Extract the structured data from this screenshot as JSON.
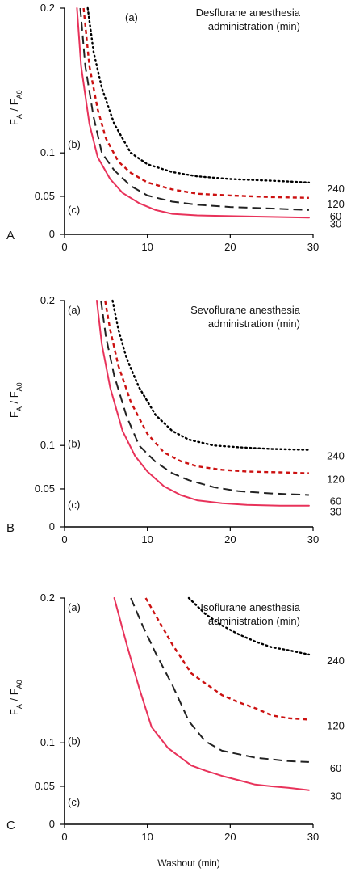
{
  "chart_data": [
    {
      "type": "line",
      "panel": "A",
      "title_lines": [
        "Desflurane anesthesia",
        "administration (min)"
      ],
      "xlabel": "",
      "ylabel": "F_A / F_A0",
      "xlim": [
        0,
        30
      ],
      "ylim": [
        0,
        0.2
      ],
      "xticks": [
        0,
        10,
        20,
        30
      ],
      "yticks": [
        0,
        0.05,
        0.1,
        0.2
      ],
      "region_labels": [
        "(a)",
        "(b)",
        "(c)"
      ],
      "series": [
        {
          "label": "240",
          "color": "#000000",
          "style": "dotted",
          "x": [
            2.8,
            3.5,
            4.5,
            6,
            8,
            10,
            13,
            16,
            20,
            25,
            29.5
          ],
          "y": [
            0.2,
            0.17,
            0.145,
            0.12,
            0.1,
            0.087,
            0.078,
            0.073,
            0.07,
            0.068,
            0.066
          ]
        },
        {
          "label": "120",
          "color": "#cc1111",
          "style": "short-dash",
          "x": [
            2.3,
            3,
            4,
            5,
            6.5,
            8,
            10,
            13,
            16,
            20,
            25,
            29.5
          ],
          "y": [
            0.2,
            0.16,
            0.13,
            0.11,
            0.09,
            0.077,
            0.066,
            0.058,
            0.053,
            0.051,
            0.049,
            0.048
          ]
        },
        {
          "label": "60",
          "color": "#222222",
          "style": "long-dash",
          "x": [
            1.9,
            2.5,
            3.5,
            4.5,
            6,
            8,
            10,
            13,
            16,
            20,
            25,
            29.5
          ],
          "y": [
            0.2,
            0.16,
            0.125,
            0.1,
            0.08,
            0.062,
            0.051,
            0.043,
            0.039,
            0.036,
            0.034,
            0.032
          ]
        },
        {
          "label": "30",
          "color": "#e8325a",
          "style": "solid",
          "x": [
            1.5,
            2,
            3,
            4,
            5.5,
            7,
            9,
            11,
            13,
            16,
            20,
            25,
            29.5
          ],
          "y": [
            0.2,
            0.16,
            0.12,
            0.095,
            0.07,
            0.054,
            0.041,
            0.032,
            0.027,
            0.025,
            0.024,
            0.023,
            0.022
          ]
        }
      ]
    },
    {
      "type": "line",
      "panel": "B",
      "title_lines": [
        "Sevoflurane anesthesia",
        "administration (min)"
      ],
      "xlabel": "",
      "ylabel": "F_A / F_A0",
      "xlim": [
        0,
        30
      ],
      "ylim": [
        0,
        0.2
      ],
      "xticks": [
        0,
        10,
        20,
        30
      ],
      "yticks": [
        0,
        0.05,
        0.1,
        0.2
      ],
      "region_labels": [
        "(a)",
        "(b)",
        "(c)"
      ],
      "series": [
        {
          "label": "240",
          "color": "#000000",
          "style": "dotted",
          "x": [
            5.8,
            6.5,
            7.5,
            9,
            11,
            13,
            15,
            18,
            21,
            25,
            29.5
          ],
          "y": [
            0.2,
            0.18,
            0.16,
            0.14,
            0.121,
            0.11,
            0.104,
            0.1,
            0.098,
            0.096,
            0.095
          ]
        },
        {
          "label": "120",
          "color": "#cc1111",
          "style": "short-dash",
          "x": [
            4.9,
            5.5,
            6.5,
            8,
            10,
            12,
            14,
            16,
            19,
            22,
            26,
            29.5
          ],
          "y": [
            0.2,
            0.18,
            0.155,
            0.13,
            0.108,
            0.092,
            0.082,
            0.076,
            0.072,
            0.07,
            0.069,
            0.068
          ]
        },
        {
          "label": "60",
          "color": "#222222",
          "style": "long-dash",
          "x": [
            4.4,
            5,
            6,
            7.5,
            9,
            11,
            13,
            15,
            18,
            21,
            25,
            29.5
          ],
          "y": [
            0.2,
            0.175,
            0.148,
            0.12,
            0.1,
            0.081,
            0.068,
            0.06,
            0.052,
            0.047,
            0.044,
            0.042
          ]
        },
        {
          "label": "30",
          "color": "#e8325a",
          "style": "solid",
          "x": [
            3.9,
            4.5,
            5.5,
            7,
            8.5,
            10,
            12,
            14,
            16,
            19,
            22,
            26,
            29.5
          ],
          "y": [
            0.2,
            0.17,
            0.14,
            0.11,
            0.088,
            0.07,
            0.053,
            0.042,
            0.035,
            0.031,
            0.029,
            0.028,
            0.028
          ]
        }
      ]
    },
    {
      "type": "line",
      "panel": "C",
      "title_lines": [
        "Isoflurane anesthesia",
        "administration (min)"
      ],
      "xlabel": "Washout (min)",
      "ylabel": "F_A / F_A0",
      "xlim": [
        0,
        30
      ],
      "ylim": [
        0,
        0.2
      ],
      "xticks": [
        0,
        10,
        20,
        30
      ],
      "yticks": [
        0,
        0.05,
        0.1,
        0.2
      ],
      "region_labels": [
        "(a)",
        "(b)",
        "(c)"
      ],
      "series": [
        {
          "label": "240",
          "color": "#000000",
          "style": "dotted",
          "x": [
            15,
            17,
            19,
            21,
            23,
            25,
            27,
            29.5
          ],
          "y": [
            0.2,
            0.189,
            0.181,
            0.175,
            0.17,
            0.166,
            0.164,
            0.161
          ]
        },
        {
          "label": "120",
          "color": "#cc1111",
          "style": "short-dash",
          "x": [
            9.8,
            11,
            13,
            15.3,
            17,
            19,
            21,
            23,
            25,
            27,
            29.5
          ],
          "y": [
            0.2,
            0.188,
            0.168,
            0.148,
            0.141,
            0.133,
            0.128,
            0.124,
            0.119,
            0.117,
            0.116
          ]
        },
        {
          "label": "60",
          "color": "#222222",
          "style": "long-dash",
          "x": [
            8,
            9.5,
            11,
            13,
            15,
            17,
            19,
            21,
            23,
            25,
            27,
            29.5
          ],
          "y": [
            0.2,
            0.18,
            0.162,
            0.14,
            0.115,
            0.101,
            0.091,
            0.087,
            0.083,
            0.081,
            0.079,
            0.078
          ]
        },
        {
          "label": "30",
          "color": "#e8325a",
          "style": "solid",
          "x": [
            6,
            7.5,
            9,
            10.5,
            12.5,
            15.3,
            17,
            19,
            21,
            23,
            25,
            27,
            29.5
          ],
          "y": [
            0.2,
            0.168,
            0.138,
            0.111,
            0.094,
            0.074,
            0.068,
            0.062,
            0.057,
            0.052,
            0.05,
            0.048,
            0.045
          ]
        }
      ]
    }
  ]
}
